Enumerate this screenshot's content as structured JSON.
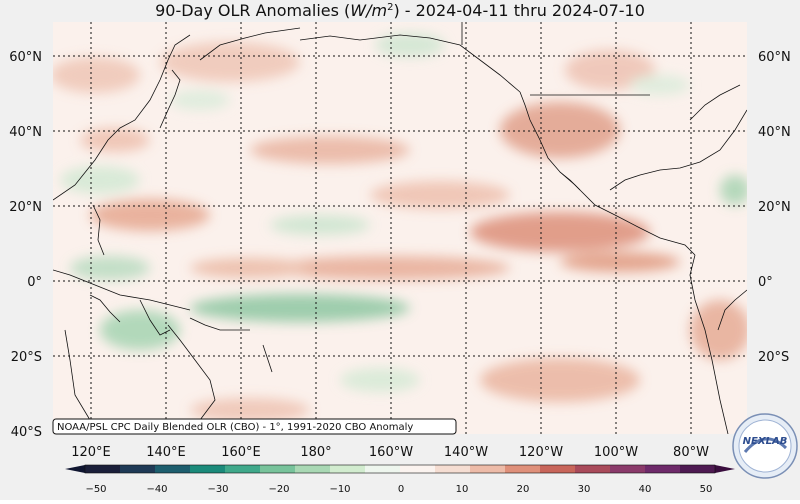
{
  "title": "90-Day OLR Anomalies (",
  "title_unit": "W/m",
  "title_unit_sup": "2",
  "title_suffix": ") - 2024-04-11 thru 2024-07-10",
  "lat_labels": [
    "60°N",
    "40°N",
    "20°N",
    "0°",
    "20°S",
    "40°S"
  ],
  "lon_labels": [
    "120°E",
    "140°E",
    "160°E",
    "180°",
    "160°W",
    "140°W",
    "120°W",
    "100°W",
    "80°W"
  ],
  "source_note": "NOAA/PSL CPC Daily Blended OLR (CBO) - 1°, 1991-2020 CBO Anomaly",
  "colorbar": {
    "ticks": [
      "−50",
      "−40",
      "−30",
      "−20",
      "−10",
      "0",
      "10",
      "20",
      "30",
      "40",
      "50"
    ],
    "colors": [
      "#1b1f3a",
      "#1f3a56",
      "#1d5e6e",
      "#1b8a7a",
      "#3fa88a",
      "#78c39b",
      "#a9d8b4",
      "#d2eccf",
      "#eef6ee",
      "#fbf3ef",
      "#f5ddd2",
      "#edbba8",
      "#df907a",
      "#c8655a",
      "#a94a5a",
      "#8a3a6a",
      "#6e2a6a",
      "#4e1a52"
    ]
  },
  "logo": {
    "text": "NEXLAB"
  }
}
